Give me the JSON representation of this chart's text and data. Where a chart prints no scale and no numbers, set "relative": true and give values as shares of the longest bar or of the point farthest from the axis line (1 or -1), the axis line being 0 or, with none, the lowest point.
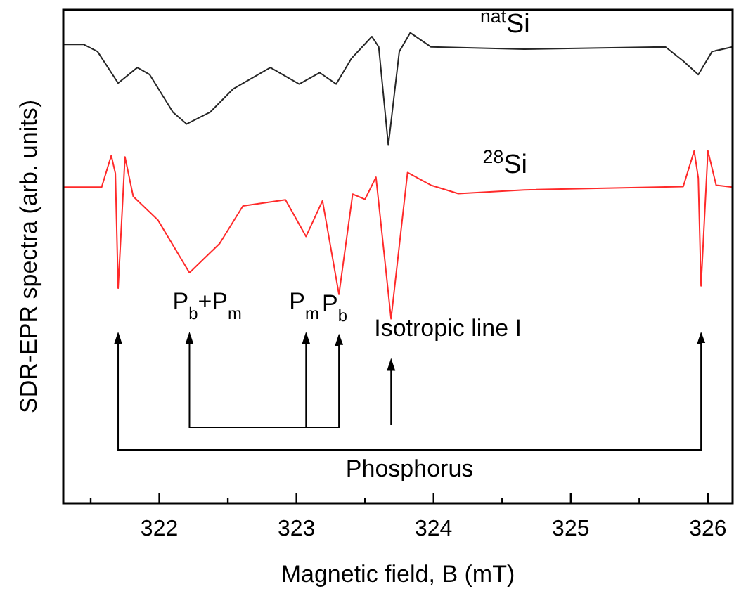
{
  "chart_data": {
    "type": "line",
    "relative": true,
    "xlabel": "Magnetic field, B (mT)",
    "ylabel": "SDR-EPR spectra (arb. units)",
    "xlim": [
      321.3,
      326.18
    ],
    "xticks": [
      {
        "value": 321.5,
        "label": null
      },
      322,
      {
        "value": 322.5,
        "label": null
      },
      323,
      {
        "value": 323.5,
        "label": null
      },
      324,
      {
        "value": 324.5,
        "label": null
      },
      325,
      {
        "value": 325.5,
        "label": null
      },
      326
    ],
    "marker": "none",
    "line_style": "solid",
    "tick_labels": "x",
    "series": [
      {
        "name": "$^{nat}$Si",
        "color": "#262626",
        "x": [
          321.3,
          321.45,
          321.55,
          321.7,
          321.84,
          321.93,
          322.1,
          322.2,
          322.37,
          322.54,
          322.81,
          323.02,
          323.17,
          323.29,
          323.4,
          323.55,
          323.6,
          323.67,
          323.75,
          323.83,
          323.98,
          324.66,
          325.69,
          325.82,
          325.93,
          326.03,
          326.18
        ],
        "values": [
          0.975,
          0.975,
          0.96,
          0.893,
          0.926,
          0.911,
          0.831,
          0.806,
          0.831,
          0.881,
          0.926,
          0.891,
          0.915,
          0.891,
          0.945,
          0.992,
          0.97,
          0.761,
          0.96,
          1,
          0.97,
          0.965,
          0.97,
          0.94,
          0.911,
          0.96,
          0.97
        ]
      },
      {
        "name": "$^{28}$Si",
        "color": "#ff2a2a",
        "x": [
          321.3,
          321.58,
          321.65,
          321.68,
          321.7,
          321.75,
          321.81,
          321.99,
          322.22,
          322.44,
          322.61,
          322.92,
          323.07,
          323.19,
          323.31,
          323.41,
          323.5,
          323.58,
          323.69,
          323.81,
          323.98,
          324.18,
          324.66,
          325.82,
          325.9,
          325.93,
          325.95,
          326.0,
          326.06,
          326.18
        ],
        "values": [
          0.672,
          0.672,
          0.739,
          0.701,
          0.457,
          0.736,
          0.652,
          0.602,
          0.49,
          0.552,
          0.632,
          0.645,
          0.567,
          0.643,
          0.444,
          0.657,
          0.646,
          0.693,
          0.392,
          0.703,
          0.676,
          0.658,
          0.666,
          0.673,
          0.749,
          0.691,
          0.462,
          0.749,
          0.676,
          0.672
        ]
      }
    ],
    "annotations": [
      "P$_{b}$+P$_{m}$",
      "P$_{m}$",
      "P$_{b}$",
      "Isotropic line I",
      "Phosphorus"
    ]
  }
}
